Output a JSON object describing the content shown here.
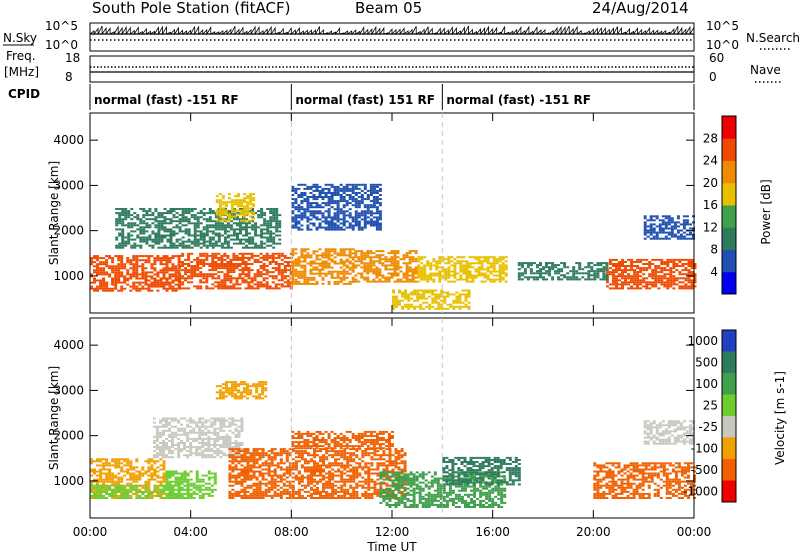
{
  "header": {
    "title": "South Pole Station (fitACF)",
    "beam": "Beam 05",
    "date": "24/Aug/2014"
  },
  "summary_panels": {
    "nsky_label": "N.Sky",
    "nsearch_label": "N.Search",
    "noise_ticks": [
      "10^5",
      "10^0"
    ],
    "freq_label": "Freq.",
    "freq_unit": "[MHz]",
    "freq_ticks": [
      "18",
      "8"
    ],
    "nave_label": "Nave",
    "nave_ticks": [
      "60",
      "0"
    ],
    "cpid_label": "CPID"
  },
  "cpid_segments": [
    {
      "label": "normal (fast) -151 RF",
      "start_hour": 0
    },
    {
      "label": "normal (fast) 151 RF",
      "start_hour": 8
    },
    {
      "label": "normal (fast) -151 RF",
      "start_hour": 14
    }
  ],
  "chart_data": [
    {
      "type": "heatmap",
      "title": "",
      "xlabel": "Time UT",
      "ylabel": "Slant Range [km]",
      "xlim": [
        0,
        24
      ],
      "ylim": [
        180,
        4600
      ],
      "x_ticks": [
        "00:00",
        "04:00",
        "08:00",
        "12:00",
        "16:00",
        "20:00",
        "00:00"
      ],
      "y_ticks": [
        1000,
        2000,
        3000,
        4000
      ],
      "colorbar": {
        "label": "Power [dB]",
        "range": [
          0,
          32
        ],
        "ticks": [
          4,
          8,
          12,
          16,
          20,
          24,
          28
        ],
        "colors": [
          "#0000ee",
          "#1f4fb0",
          "#2e7b5e",
          "#3f9f4a",
          "#e8c000",
          "#f08a00",
          "#f04a00",
          "#ee0000"
        ]
      },
      "regions": [
        {
          "t0": 0.0,
          "t1": 3.5,
          "r0": 650,
          "r1": 1450,
          "value": 25
        },
        {
          "t0": 3.5,
          "t1": 8.0,
          "r0": 700,
          "r1": 1500,
          "value": 26
        },
        {
          "t0": 8.0,
          "t1": 10.5,
          "r0": 800,
          "r1": 1600,
          "value": 22
        },
        {
          "t0": 10.5,
          "t1": 13.0,
          "r0": 850,
          "r1": 1550,
          "value": 20
        },
        {
          "t0": 13.0,
          "t1": 16.5,
          "r0": 850,
          "r1": 1400,
          "value": 19
        },
        {
          "t0": 20.5,
          "t1": 24.0,
          "r0": 700,
          "r1": 1350,
          "value": 25
        },
        {
          "t0": 1.0,
          "t1": 7.5,
          "r0": 1600,
          "r1": 2500,
          "value": 10
        },
        {
          "t0": 5.0,
          "t1": 6.5,
          "r0": 2200,
          "r1": 2800,
          "value": 16
        },
        {
          "t0": 8.0,
          "t1": 11.5,
          "r0": 2000,
          "r1": 3000,
          "value": 7
        },
        {
          "t0": 22.0,
          "t1": 24.0,
          "r0": 1800,
          "r1": 2300,
          "value": 5
        },
        {
          "t0": 12.0,
          "t1": 15.0,
          "r0": 250,
          "r1": 700,
          "value": 17
        },
        {
          "t0": 17.0,
          "t1": 20.5,
          "r0": 900,
          "r1": 1300,
          "value": 8
        }
      ]
    },
    {
      "type": "heatmap",
      "title": "",
      "xlabel": "Time UT",
      "ylabel": "Slant Range [km]",
      "xlim": [
        0,
        24
      ],
      "ylim": [
        180,
        4600
      ],
      "x_ticks": [
        "00:00",
        "04:00",
        "08:00",
        "12:00",
        "16:00",
        "20:00",
        "00:00"
      ],
      "y_ticks": [
        1000,
        2000,
        3000,
        4000
      ],
      "colorbar": {
        "label": "Velocity [m s-1]",
        "levels": [
          1000,
          500,
          100,
          25,
          -25,
          -100,
          -500,
          -1000
        ],
        "colors": [
          "#2040c0",
          "#2e7b5e",
          "#3f9f4a",
          "#6ccc30",
          "#c8c8c0",
          "#f0a000",
          "#f06000",
          "#ee0000"
        ]
      },
      "regions": [
        {
          "t0": 0.0,
          "t1": 3.0,
          "r0": 600,
          "r1": 1500,
          "value": -100
        },
        {
          "t0": 0.0,
          "t1": 4.0,
          "r0": 600,
          "r1": 900,
          "value": 60
        },
        {
          "t0": 3.0,
          "t1": 5.0,
          "r0": 600,
          "r1": 1200,
          "value": 80
        },
        {
          "t0": 2.5,
          "t1": 6.0,
          "r0": 1500,
          "r1": 2400,
          "value": 0
        },
        {
          "t0": 5.5,
          "t1": 12.5,
          "r0": 600,
          "r1": 1700,
          "value": -120
        },
        {
          "t0": 8.0,
          "t1": 12.0,
          "r0": 1700,
          "r1": 2100,
          "value": -150
        },
        {
          "t0": 5.0,
          "t1": 7.0,
          "r0": 2800,
          "r1": 3200,
          "value": -80
        },
        {
          "t0": 11.5,
          "t1": 16.5,
          "r0": 400,
          "r1": 1200,
          "value": 300
        },
        {
          "t0": 14.0,
          "t1": 17.0,
          "r0": 900,
          "r1": 1500,
          "value": 600
        },
        {
          "t0": 20.0,
          "t1": 24.0,
          "r0": 600,
          "r1": 1400,
          "value": -200
        },
        {
          "t0": 22.0,
          "t1": 24.0,
          "r0": 1800,
          "r1": 2300,
          "value": 0
        }
      ]
    }
  ]
}
